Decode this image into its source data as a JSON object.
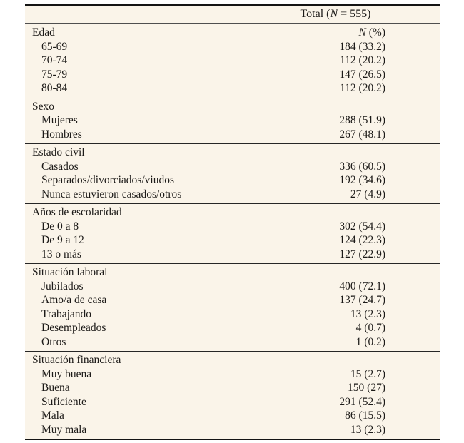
{
  "table": {
    "colors": {
      "page_bg": "#ffffff",
      "table_bg": "#faf4e9",
      "text": "#1c1a18",
      "rule_dark": "#141414",
      "rule_gray": "#4f4f4f",
      "rule_section": "#262626"
    },
    "total_header": {
      "pre": "Total (",
      "n": "N",
      "post": " = 555)"
    },
    "col_header": {
      "n": "N",
      "post": " (%)"
    },
    "sections": [
      {
        "label": "Edad",
        "rows": [
          {
            "label": "65-69",
            "value": "184 (33.2)"
          },
          {
            "label": "70-74",
            "value": "112 (20.2)"
          },
          {
            "label": "75-79",
            "value": "147 (26.5)"
          },
          {
            "label": "80-84",
            "value": "112 (20.2)"
          }
        ]
      },
      {
        "label": "Sexo",
        "rows": [
          {
            "label": "Mujeres",
            "value": "288 (51.9)"
          },
          {
            "label": "Hombres",
            "value": "267 (48.1)"
          }
        ]
      },
      {
        "label": "Estado civil",
        "rows": [
          {
            "label": "Casados",
            "value": "336 (60.5)"
          },
          {
            "label": "Separados/divorciados/viudos",
            "value": "192 (34.6)"
          },
          {
            "label": "Nunca estuvieron casados/otros",
            "value": "27 (4.9)"
          }
        ]
      },
      {
        "label": "Años de escolaridad",
        "rows": [
          {
            "label": "De 0 a 8",
            "value": "302 (54.4)"
          },
          {
            "label": "De 9 a 12",
            "value": "124 (22.3)"
          },
          {
            "label": "13 o más",
            "value": "127 (22.9)"
          }
        ]
      },
      {
        "label": "Situación laboral",
        "rows": [
          {
            "label": "Jubilados",
            "value": "400 (72.1)"
          },
          {
            "label": "Amo/a de casa",
            "value": "137 (24.7)"
          },
          {
            "label": "Trabajando",
            "value": "13 (2.3)"
          },
          {
            "label": "Desempleados",
            "value": "4 (0.7)"
          },
          {
            "label": "Otros",
            "value": "1 (0.2)"
          }
        ]
      },
      {
        "label": "Situación financiera",
        "rows": [
          {
            "label": "Muy buena",
            "value": "15 (2.7)"
          },
          {
            "label": "Buena",
            "value": "150 (27)"
          },
          {
            "label": "Suficiente",
            "value": "291 (52.4)"
          },
          {
            "label": "Mala",
            "value": "86 (15.5)"
          },
          {
            "label": "Muy mala",
            "value": "13 (2.3)"
          }
        ]
      }
    ]
  }
}
